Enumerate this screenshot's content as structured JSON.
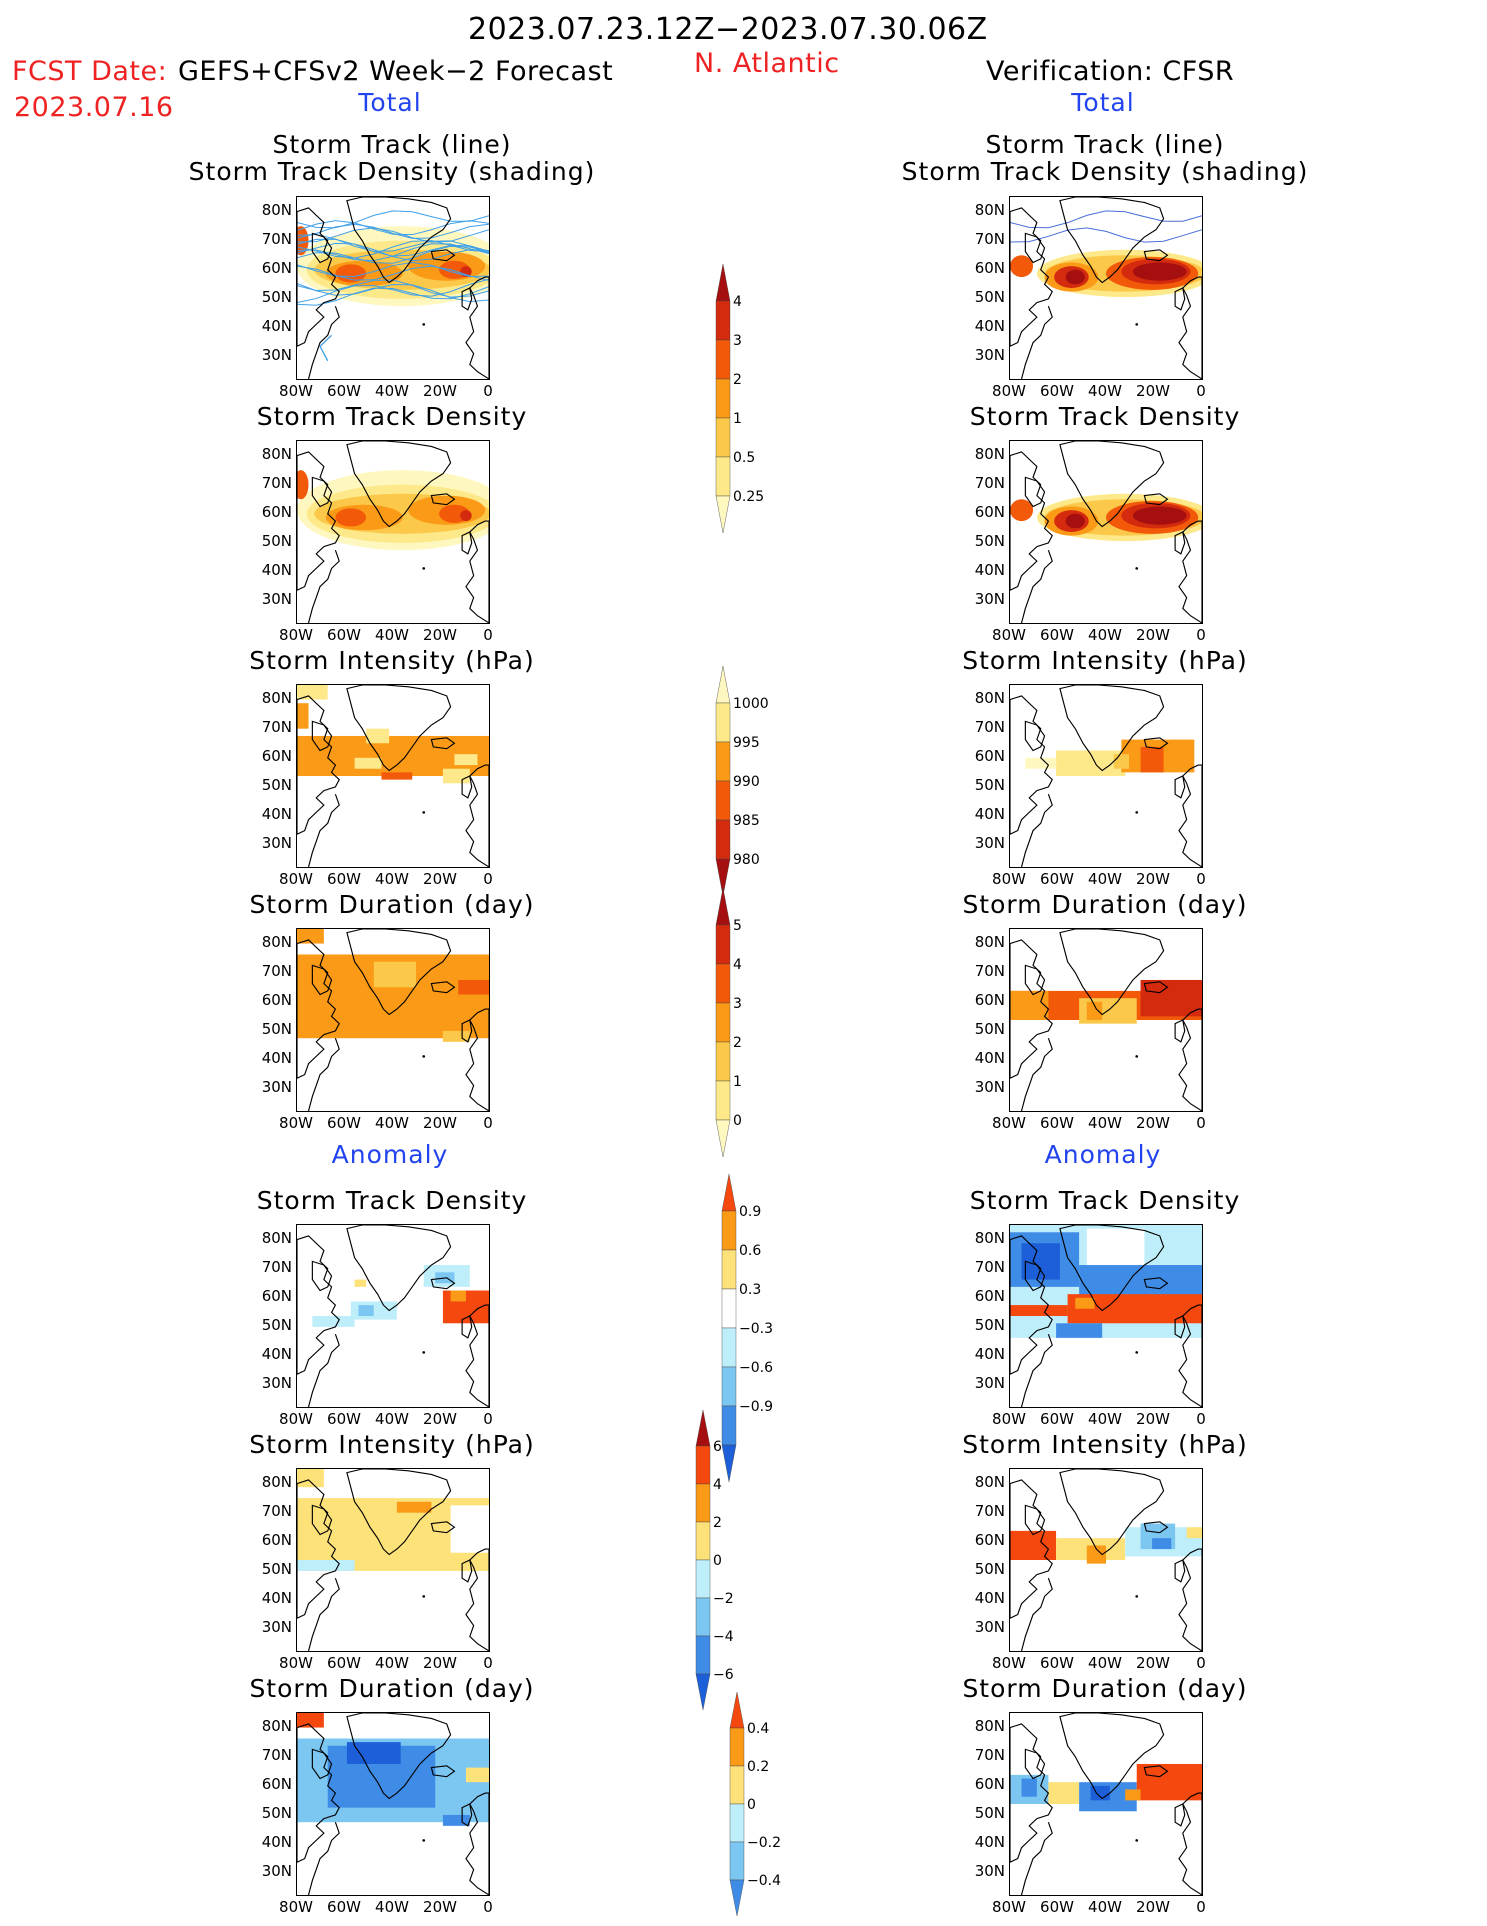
{
  "header": {
    "period": "2023.07.23.12Z−2023.07.30.06Z",
    "fcst_label": "FCST Date:",
    "fcst_model": "GEFS+CFSv2 Week−2 Forecast",
    "fcst_date": "2023.07.16",
    "region": "N. Atlantic",
    "verification": "Verification: CFSR"
  },
  "sections": {
    "total": "Total",
    "anomaly": "Anomaly"
  },
  "panel_titles": {
    "track_line": "Storm Track (line)",
    "track_shading": "Storm Track Density (shading)",
    "density": "Storm Track Density",
    "intensity": "Storm Intensity (hPa)",
    "duration": "Storm Duration (day)"
  },
  "axes": {
    "lat_ticks": [
      "80N",
      "70N",
      "60N",
      "50N",
      "40N",
      "30N"
    ],
    "lon_ticks": [
      "80W",
      "60W",
      "40W",
      "20W",
      "0"
    ]
  },
  "colorbars": [
    {
      "id": "total-density",
      "labels": [
        "4",
        "3",
        "2",
        "1",
        "0.5",
        "0.25"
      ],
      "colors": [
        "#a50f0f",
        "#d42a0e",
        "#f25a0a",
        "#fb9a16",
        "#fbc84a",
        "#fde98a",
        "#fff7c0"
      ]
    },
    {
      "id": "total-intensity",
      "labels": [
        "1000",
        "995",
        "990",
        "985",
        "980"
      ],
      "colors": [
        "#fff7c0",
        "#fde98a",
        "#fb9a16",
        "#f25a0a",
        "#d42a0e",
        "#a50f0f"
      ]
    },
    {
      "id": "total-duration",
      "labels": [
        "5",
        "4",
        "3",
        "2",
        "1",
        "0"
      ],
      "colors": [
        "#a50f0f",
        "#d42a0e",
        "#f25a0a",
        "#fb9a16",
        "#fbc84a",
        "#fde98a",
        "#fff7c0"
      ]
    },
    {
      "id": "anom-density",
      "labels": [
        "0.9",
        "0.6",
        "0.3",
        "−0.3",
        "−0.6",
        "−0.9"
      ],
      "colors": [
        "#f4480e",
        "#fb9a16",
        "#fde27a",
        "#ffffff",
        "#bfeefb",
        "#7cc6f2",
        "#3f8ce6",
        "#1d5fd8"
      ]
    },
    {
      "id": "anom-intensity",
      "labels": [
        "6",
        "4",
        "2",
        "0",
        "−2",
        "−4",
        "−6"
      ],
      "colors": [
        "#a50f0f",
        "#f4480e",
        "#fb9a16",
        "#fde27a",
        "#bfeefb",
        "#7cc6f2",
        "#3f8ce6",
        "#1d5fd8"
      ]
    },
    {
      "id": "anom-duration",
      "labels": [
        "0.4",
        "0.2",
        "0",
        "−0.2",
        "−0.4"
      ],
      "colors": [
        "#f4480e",
        "#fb9a16",
        "#fde27a",
        "#bfeefb",
        "#7cc6f2",
        "#3f8ce6"
      ]
    }
  ],
  "map_fields": [
    {
      "id": "fc-track",
      "kind": "density-tracks",
      "side": "forecast"
    },
    {
      "id": "fc-density",
      "kind": "density",
      "side": "forecast"
    },
    {
      "id": "fc-intensity",
      "kind": "intensity",
      "side": "forecast"
    },
    {
      "id": "fc-duration",
      "kind": "duration",
      "side": "forecast"
    },
    {
      "id": "fc-anom-density",
      "kind": "anom-density",
      "side": "forecast"
    },
    {
      "id": "fc-anom-intensity",
      "kind": "anom-intensity",
      "side": "forecast"
    },
    {
      "id": "fc-anom-duration",
      "kind": "anom-duration",
      "side": "forecast"
    },
    {
      "id": "vf-track",
      "kind": "density-tracks",
      "side": "verification"
    },
    {
      "id": "vf-density",
      "kind": "density",
      "side": "verification"
    },
    {
      "id": "vf-intensity",
      "kind": "intensity",
      "side": "verification"
    },
    {
      "id": "vf-duration",
      "kind": "duration",
      "side": "verification"
    },
    {
      "id": "vf-anom-density",
      "kind": "anom-density",
      "side": "verification"
    },
    {
      "id": "vf-anom-intensity",
      "kind": "anom-intensity",
      "side": "verification"
    },
    {
      "id": "vf-anom-duration",
      "kind": "anom-duration",
      "side": "verification"
    }
  ]
}
